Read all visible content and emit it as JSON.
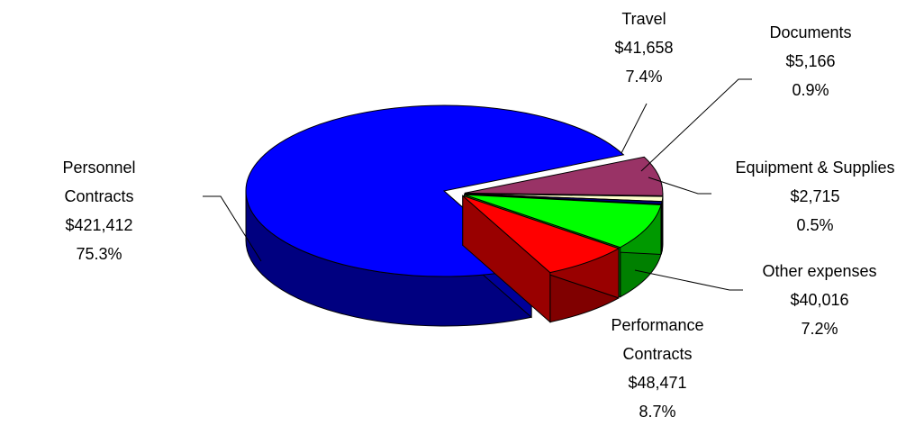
{
  "chart_data": {
    "type": "pie3d",
    "categories": [
      "Personnel Contracts",
      "Travel",
      "Documents",
      "Equipment & Supplies",
      "Performance Contracts",
      "Other expenses"
    ],
    "values": [
      421412,
      41658,
      5166,
      2715,
      48471,
      40016
    ],
    "value_labels": [
      "$421,412",
      "$41,658",
      "$5,166",
      "$2,715",
      "$48,471",
      "$40,016"
    ],
    "percent_labels": [
      "75.3%",
      "7.4%",
      "0.9%",
      "0.5%",
      "8.7%",
      "7.2%"
    ],
    "colors": [
      "#0000ff",
      "#993366",
      "#ffffcc",
      "#000080",
      "#00ff00",
      "#ff0000"
    ]
  }
}
